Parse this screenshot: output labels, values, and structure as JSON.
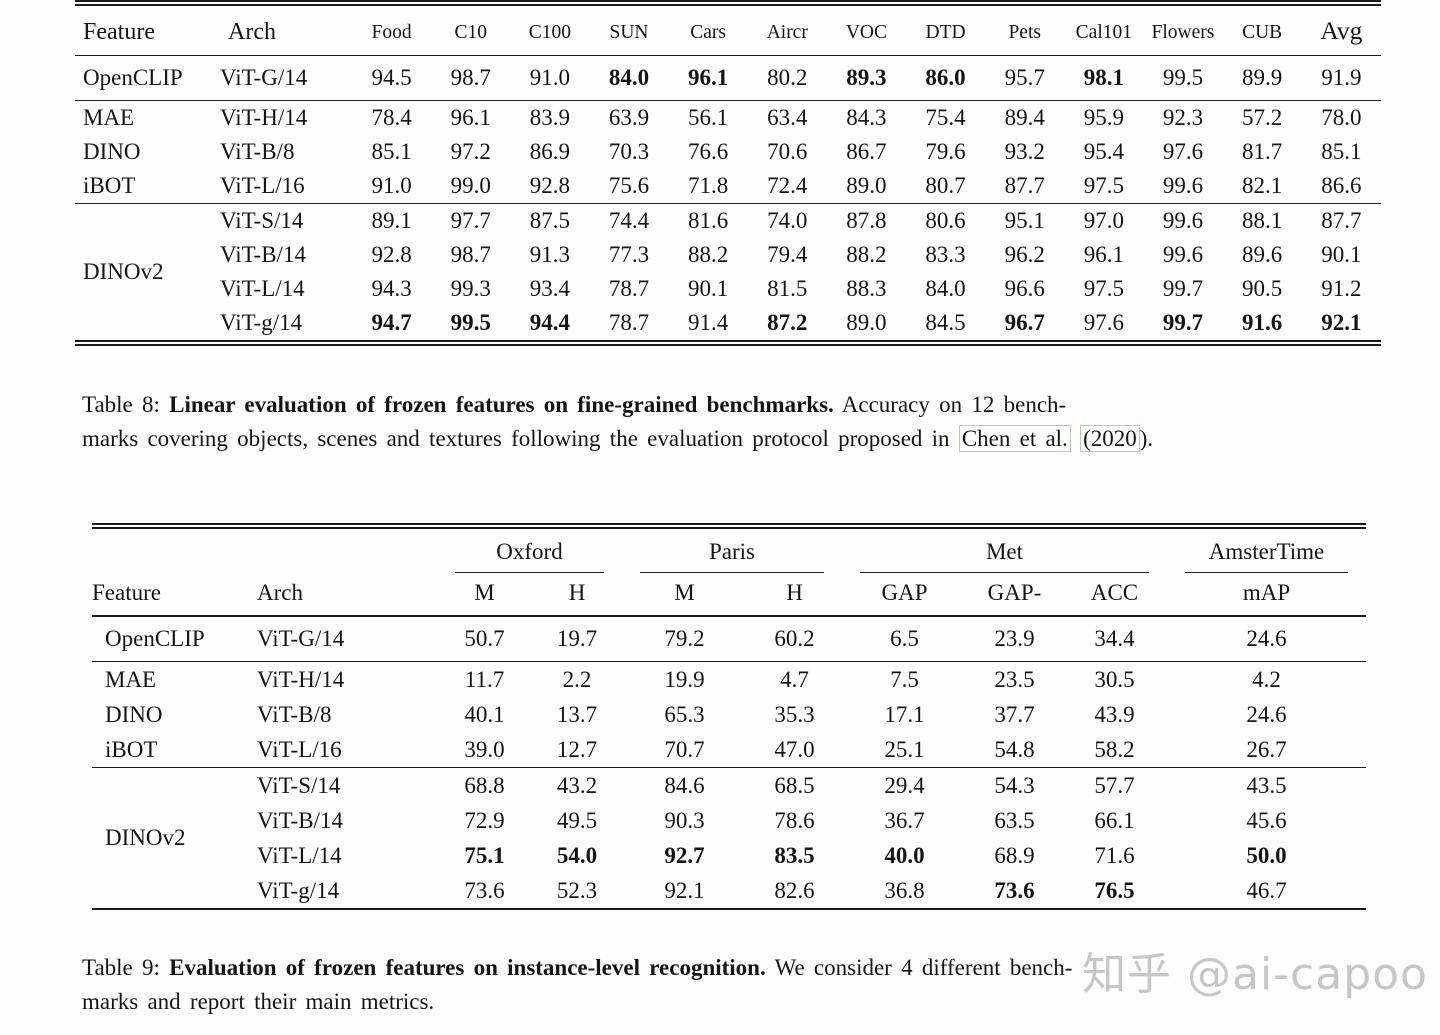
{
  "watermark": {
    "text": "知乎 @ai-capoo",
    "color": "#c6c6c6"
  },
  "link_box_color": "#a8d8a8",
  "table8": {
    "headers": {
      "feature": "Feature",
      "arch": "Arch",
      "benchmarks": [
        "Food",
        "C10",
        "C100",
        "SUN",
        "Cars",
        "Aircr",
        "VOC",
        "DTD",
        "Pets",
        "Cal101",
        "Flowers",
        "CUB"
      ],
      "avg": "Avg"
    },
    "groups": [
      {
        "rows": [
          {
            "feature": "OpenCLIP",
            "arch": "ViT-G/14",
            "values": [
              "94.5",
              "98.7",
              "91.0",
              "84.0",
              "96.1",
              "80.2",
              "89.3",
              "86.0",
              "95.7",
              "98.1",
              "99.5",
              "89.9",
              "91.9"
            ],
            "bold": [
              3,
              4,
              6,
              7,
              9
            ]
          }
        ]
      },
      {
        "rows": [
          {
            "feature": "MAE",
            "arch": "ViT-H/14",
            "values": [
              "78.4",
              "96.1",
              "83.9",
              "63.9",
              "56.1",
              "63.4",
              "84.3",
              "75.4",
              "89.4",
              "95.9",
              "92.3",
              "57.2",
              "78.0"
            ],
            "bold": []
          },
          {
            "feature": "DINO",
            "arch": "ViT-B/8",
            "values": [
              "85.1",
              "97.2",
              "86.9",
              "70.3",
              "76.6",
              "70.6",
              "86.7",
              "79.6",
              "93.2",
              "95.4",
              "97.6",
              "81.7",
              "85.1"
            ],
            "bold": []
          },
          {
            "feature": "iBOT",
            "arch": "ViT-L/16",
            "values": [
              "91.0",
              "99.0",
              "92.8",
              "75.6",
              "71.8",
              "72.4",
              "89.0",
              "80.7",
              "87.7",
              "97.5",
              "99.6",
              "82.1",
              "86.6"
            ],
            "bold": []
          }
        ]
      },
      {
        "label": "DINOv2",
        "rows": [
          {
            "arch": "ViT-S/14",
            "values": [
              "89.1",
              "97.7",
              "87.5",
              "74.4",
              "81.6",
              "74.0",
              "87.8",
              "80.6",
              "95.1",
              "97.0",
              "99.6",
              "88.1",
              "87.7"
            ],
            "bold": []
          },
          {
            "arch": "ViT-B/14",
            "values": [
              "92.8",
              "98.7",
              "91.3",
              "77.3",
              "88.2",
              "79.4",
              "88.2",
              "83.3",
              "96.2",
              "96.1",
              "99.6",
              "89.6",
              "90.1"
            ],
            "bold": []
          },
          {
            "arch": "ViT-L/14",
            "values": [
              "94.3",
              "99.3",
              "93.4",
              "78.7",
              "90.1",
              "81.5",
              "88.3",
              "84.0",
              "96.6",
              "97.5",
              "99.7",
              "90.5",
              "91.2"
            ],
            "bold": []
          },
          {
            "arch": "ViT-g/14",
            "values": [
              "94.7",
              "99.5",
              "94.4",
              "78.7",
              "91.4",
              "87.2",
              "89.0",
              "84.5",
              "96.7",
              "97.6",
              "99.7",
              "91.6",
              "92.1"
            ],
            "bold": [
              0,
              1,
              2,
              5,
              8,
              10,
              11,
              12
            ]
          }
        ]
      }
    ],
    "caption": {
      "label": "Table 8:",
      "bold": "Linear evaluation of frozen features on fine-grained benchmarks.",
      "rest1": "Accuracy on 12 bench-",
      "line2a": "marks covering objects, scenes and textures following the evaluation protocol proposed in",
      "cite": "Chen et al.",
      "cite_year": "(2020",
      "line2b": ")."
    }
  },
  "table9": {
    "col_groups": [
      {
        "label": "Oxford",
        "span": 2
      },
      {
        "label": "Paris",
        "span": 2
      },
      {
        "label": "Met",
        "span": 3
      },
      {
        "label": "AmsterTime",
        "span": 1
      }
    ],
    "headers": {
      "feature": "Feature",
      "arch": "Arch",
      "cols": [
        "M",
        "H",
        "M",
        "H",
        "GAP",
        "GAP-",
        "ACC",
        "mAP"
      ]
    },
    "groups": [
      {
        "rows": [
          {
            "feature": "OpenCLIP",
            "arch": "ViT-G/14",
            "values": [
              "50.7",
              "19.7",
              "79.2",
              "60.2",
              "6.5",
              "23.9",
              "34.4",
              "24.6"
            ],
            "bold": []
          }
        ]
      },
      {
        "rows": [
          {
            "feature": "MAE",
            "arch": "ViT-H/14",
            "values": [
              "11.7",
              "2.2",
              "19.9",
              "4.7",
              "7.5",
              "23.5",
              "30.5",
              "4.2"
            ],
            "bold": []
          },
          {
            "feature": "DINO",
            "arch": "ViT-B/8",
            "values": [
              "40.1",
              "13.7",
              "65.3",
              "35.3",
              "17.1",
              "37.7",
              "43.9",
              "24.6"
            ],
            "bold": []
          },
          {
            "feature": "iBOT",
            "arch": "ViT-L/16",
            "values": [
              "39.0",
              "12.7",
              "70.7",
              "47.0",
              "25.1",
              "54.8",
              "58.2",
              "26.7"
            ],
            "bold": []
          }
        ]
      },
      {
        "label": "DINOv2",
        "rows": [
          {
            "arch": "ViT-S/14",
            "values": [
              "68.8",
              "43.2",
              "84.6",
              "68.5",
              "29.4",
              "54.3",
              "57.7",
              "43.5"
            ],
            "bold": []
          },
          {
            "arch": "ViT-B/14",
            "values": [
              "72.9",
              "49.5",
              "90.3",
              "78.6",
              "36.7",
              "63.5",
              "66.1",
              "45.6"
            ],
            "bold": []
          },
          {
            "arch": "ViT-L/14",
            "values": [
              "75.1",
              "54.0",
              "92.7",
              "83.5",
              "40.0",
              "68.9",
              "71.6",
              "50.0"
            ],
            "bold": [
              0,
              1,
              2,
              3,
              4,
              7
            ]
          },
          {
            "arch": "ViT-g/14",
            "values": [
              "73.6",
              "52.3",
              "92.1",
              "82.6",
              "36.8",
              "73.6",
              "76.5",
              "46.7"
            ],
            "bold": [
              5,
              6
            ]
          }
        ]
      }
    ],
    "caption": {
      "label": "Table 9:",
      "bold": "Evaluation of frozen features on instance-level recognition.",
      "rest1": "We consider 4 different bench-",
      "line2": "marks and report their main metrics."
    }
  }
}
